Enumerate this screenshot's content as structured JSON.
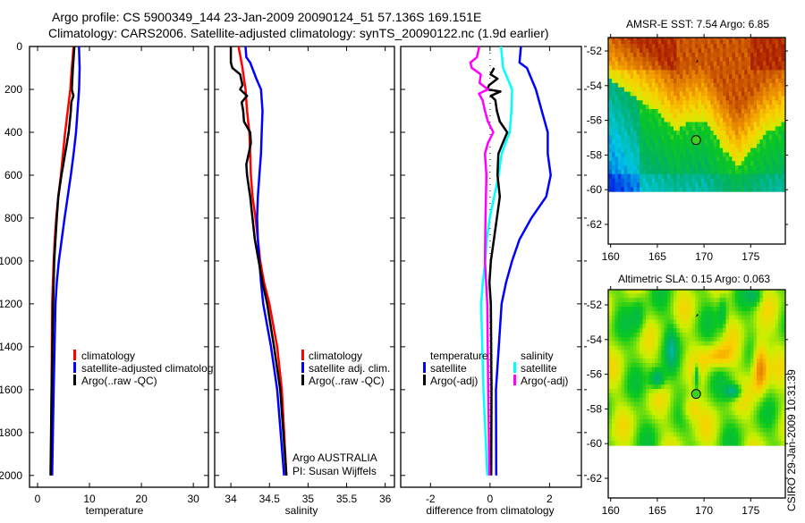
{
  "titles": {
    "line1": "Argo profile: CS 5900349_144 23-Jan-2009 20090124_51 57.136S 169.151E",
    "line2": "Climatology: CARS2006. Satellite-adjusted climatology: synTS_20090122.nc (1.9d earlier)"
  },
  "colors": {
    "climatology": "#ff0000",
    "satellite": "#0000ff",
    "argo": "#000000",
    "sal_satellite": "#00ffff",
    "sal_argo": "#ff00ff"
  },
  "chart_data": [
    {
      "id": "temperature",
      "type": "line",
      "xlabel": "temperature",
      "ylabel": "",
      "xlim": [
        -1.55,
        32.9
      ],
      "ylim": [
        0,
        2055
      ],
      "xticks": [
        0,
        10,
        20,
        30
      ],
      "yticks": [
        0,
        200,
        400,
        600,
        800,
        1000,
        1200,
        1400,
        1600,
        1800,
        2000
      ],
      "legend": [
        "climatology",
        "satellite-adjusted climatology",
        "Argo(..raw -QC)"
      ],
      "series": [
        {
          "name": "climatology",
          "color": "#ff0000",
          "depth": [
            0,
            100,
            200,
            300,
            400,
            500,
            600,
            700,
            800,
            900,
            1000,
            1100,
            1200,
            1600,
            2000
          ],
          "values": [
            6.95,
            6.6,
            6.3,
            5.8,
            5.3,
            4.9,
            4.5,
            4.0,
            3.6,
            3.3,
            3.1,
            2.95,
            2.8,
            2.7,
            2.6
          ]
        },
        {
          "name": "satellite-adjusted climatology",
          "color": "#0000ff",
          "depth": [
            0,
            100,
            200,
            300,
            400,
            500,
            600,
            700,
            800,
            900,
            1000,
            1100,
            1200,
            1600,
            2000
          ],
          "values": [
            7.98,
            8.1,
            8.0,
            7.7,
            7.4,
            6.95,
            6.4,
            5.8,
            5.2,
            4.65,
            4.1,
            3.7,
            3.45,
            3.1,
            2.8
          ]
        },
        {
          "name": "Argo(..raw -QC)",
          "color": "#000000",
          "depth": [
            0,
            100,
            200,
            230,
            260,
            300,
            400,
            500,
            600,
            700,
            800,
            900,
            1000,
            1100,
            1200,
            1600,
            2000
          ],
          "values": [
            7.1,
            6.8,
            6.6,
            6.9,
            6.5,
            6.4,
            6.0,
            5.3,
            4.6,
            4.0,
            3.7,
            3.45,
            3.2,
            3.1,
            3.0,
            2.7,
            2.5
          ]
        }
      ]
    },
    {
      "id": "salinity",
      "type": "line",
      "xlabel": "salinity",
      "ylabel": "",
      "xlim": [
        33.79,
        36.12
      ],
      "ylim": [
        0,
        2055
      ],
      "xticks": [
        34,
        34.5,
        35,
        35.5,
        36
      ],
      "xticklabels": [
        "34",
        "34.5",
        "35",
        "35.5",
        "36"
      ],
      "legend": [
        "climatology",
        "satellite adj. clim.",
        "Argo(..raw -QC)"
      ],
      "annotation": [
        "Argo AUSTRALIA",
        "PI: Susan Wijffels"
      ],
      "series": [
        {
          "name": "climatology",
          "color": "#ff0000",
          "depth": [
            0,
            100,
            200,
            300,
            400,
            500,
            600,
            700,
            800,
            900,
            1000,
            1100,
            1200,
            1400,
            1600,
            2000
          ],
          "values": [
            34.1,
            34.15,
            34.19,
            34.21,
            34.24,
            34.25,
            34.26,
            34.28,
            34.32,
            34.35,
            34.38,
            34.43,
            34.5,
            34.6,
            34.66,
            34.72
          ]
        },
        {
          "name": "satellite adj. clim.",
          "color": "#0000ff",
          "depth": [
            0,
            50,
            75,
            150,
            200,
            300,
            400,
            500,
            600,
            700,
            800,
            900,
            1000,
            1100,
            1200,
            1400,
            1600,
            2000
          ],
          "values": [
            34.19,
            34.2,
            34.25,
            34.33,
            34.39,
            34.41,
            34.4,
            34.39,
            34.37,
            34.35,
            34.34,
            34.35,
            34.37,
            34.39,
            34.42,
            34.52,
            34.6,
            34.69
          ]
        },
        {
          "name": "Argo(..raw -QC)",
          "color": "#000000",
          "depth": [
            0,
            75,
            100,
            130,
            180,
            200,
            230,
            260,
            300,
            350,
            400,
            450,
            500,
            550,
            600,
            700,
            800,
            900,
            1000,
            1100,
            1200,
            1400,
            1600,
            2000
          ],
          "values": [
            34.0,
            34.0,
            34.02,
            34.12,
            34.15,
            34.12,
            34.21,
            34.14,
            34.16,
            34.17,
            34.25,
            34.26,
            34.23,
            34.2,
            34.21,
            34.25,
            34.28,
            34.31,
            34.36,
            34.41,
            34.47,
            34.56,
            34.64,
            34.72
          ]
        }
      ]
    },
    {
      "id": "difference",
      "type": "line",
      "xlabel": "difference from climatology",
      "ylabel": "",
      "xlim": [
        -3.0,
        3.07
      ],
      "ylim": [
        0,
        2055
      ],
      "xticks": [
        -2,
        0,
        2
      ],
      "legend_groups": [
        {
          "title": "temperature",
          "entries": [
            "satellite",
            "Argo(-adj)"
          ]
        },
        {
          "title": "salinity",
          "entries": [
            "satellite",
            "Argo(-adj)"
          ]
        }
      ],
      "series": [
        {
          "name": "temperature satellite",
          "color": "#0000ff",
          "depth": [
            0,
            75,
            100,
            200,
            300,
            400,
            500,
            600,
            700,
            800,
            900,
            1000,
            1100,
            1200,
            1600,
            2000
          ],
          "values": [
            1.04,
            0.99,
            1.24,
            1.54,
            1.74,
            1.94,
            1.94,
            2.04,
            1.89,
            1.39,
            0.99,
            0.74,
            0.54,
            0.39,
            0.2,
            0.21
          ]
        },
        {
          "name": "salinity satellite",
          "color": "#00ffff",
          "depth": [
            0,
            100,
            200,
            300,
            400,
            500,
            600,
            700,
            800,
            900,
            1000,
            1100,
            1200,
            1600,
            2000
          ],
          "values": [
            0.37,
            0.44,
            0.74,
            0.72,
            0.66,
            0.39,
            0.29,
            0.14,
            -0.01,
            -0.11,
            -0.16,
            -0.24,
            -0.3,
            -0.22,
            -0.09
          ]
        },
        {
          "name": "temperature Argo(-adj)",
          "color": "#000000",
          "depth": [
            100,
            130,
            150,
            180,
            200,
            210,
            230,
            250,
            300,
            350,
            400,
            450,
            500,
            600,
            700,
            800,
            900,
            1000,
            1100,
            1200,
            1600,
            2000
          ],
          "values": [
            0.14,
            0.02,
            0.25,
            -0.03,
            -0.09,
            0.35,
            0.03,
            0.18,
            0.23,
            0.33,
            0.58,
            0.43,
            0.28,
            0.25,
            0.33,
            0.23,
            0.13,
            0.03,
            -0.02,
            0.03,
            0.05,
            0.04
          ]
        },
        {
          "name": "salinity Argo(-adj)",
          "color": "#ff00ff",
          "depth": [
            0,
            50,
            75,
            100,
            130,
            170,
            200,
            220,
            250,
            300,
            350,
            400,
            450,
            500,
            600,
            800,
            1000,
            1200,
            1600,
            2000
          ],
          "values": [
            -0.36,
            -0.44,
            -0.66,
            -0.61,
            -0.31,
            -0.35,
            -0.07,
            -0.37,
            -0.25,
            -0.17,
            -0.07,
            0.11,
            -0.07,
            -0.17,
            -0.12,
            -0.15,
            -0.17,
            -0.09,
            -0.06,
            -0.02
          ]
        }
      ]
    }
  ],
  "maps": [
    {
      "id": "sst",
      "title": "AMSR-E SST: 7.54 Argo: 6.85",
      "xticks": [
        160,
        165,
        170,
        175
      ],
      "yticks": [
        -52,
        -54,
        -56,
        -58,
        -60,
        -62
      ],
      "argo_lon": 169.151,
      "argo_lat": -57.136
    },
    {
      "id": "sla",
      "title": "Altimetric SLA: 0.15 Argo: 0.063",
      "xticks": [
        160,
        165,
        170,
        175
      ],
      "yticks": [
        -52,
        -54,
        -56,
        -58,
        -60,
        -62
      ],
      "argo_lon": 169.151,
      "argo_lat": -57.136
    }
  ],
  "stamp": "CSIRO 29-Jan-2009 10:31:39"
}
